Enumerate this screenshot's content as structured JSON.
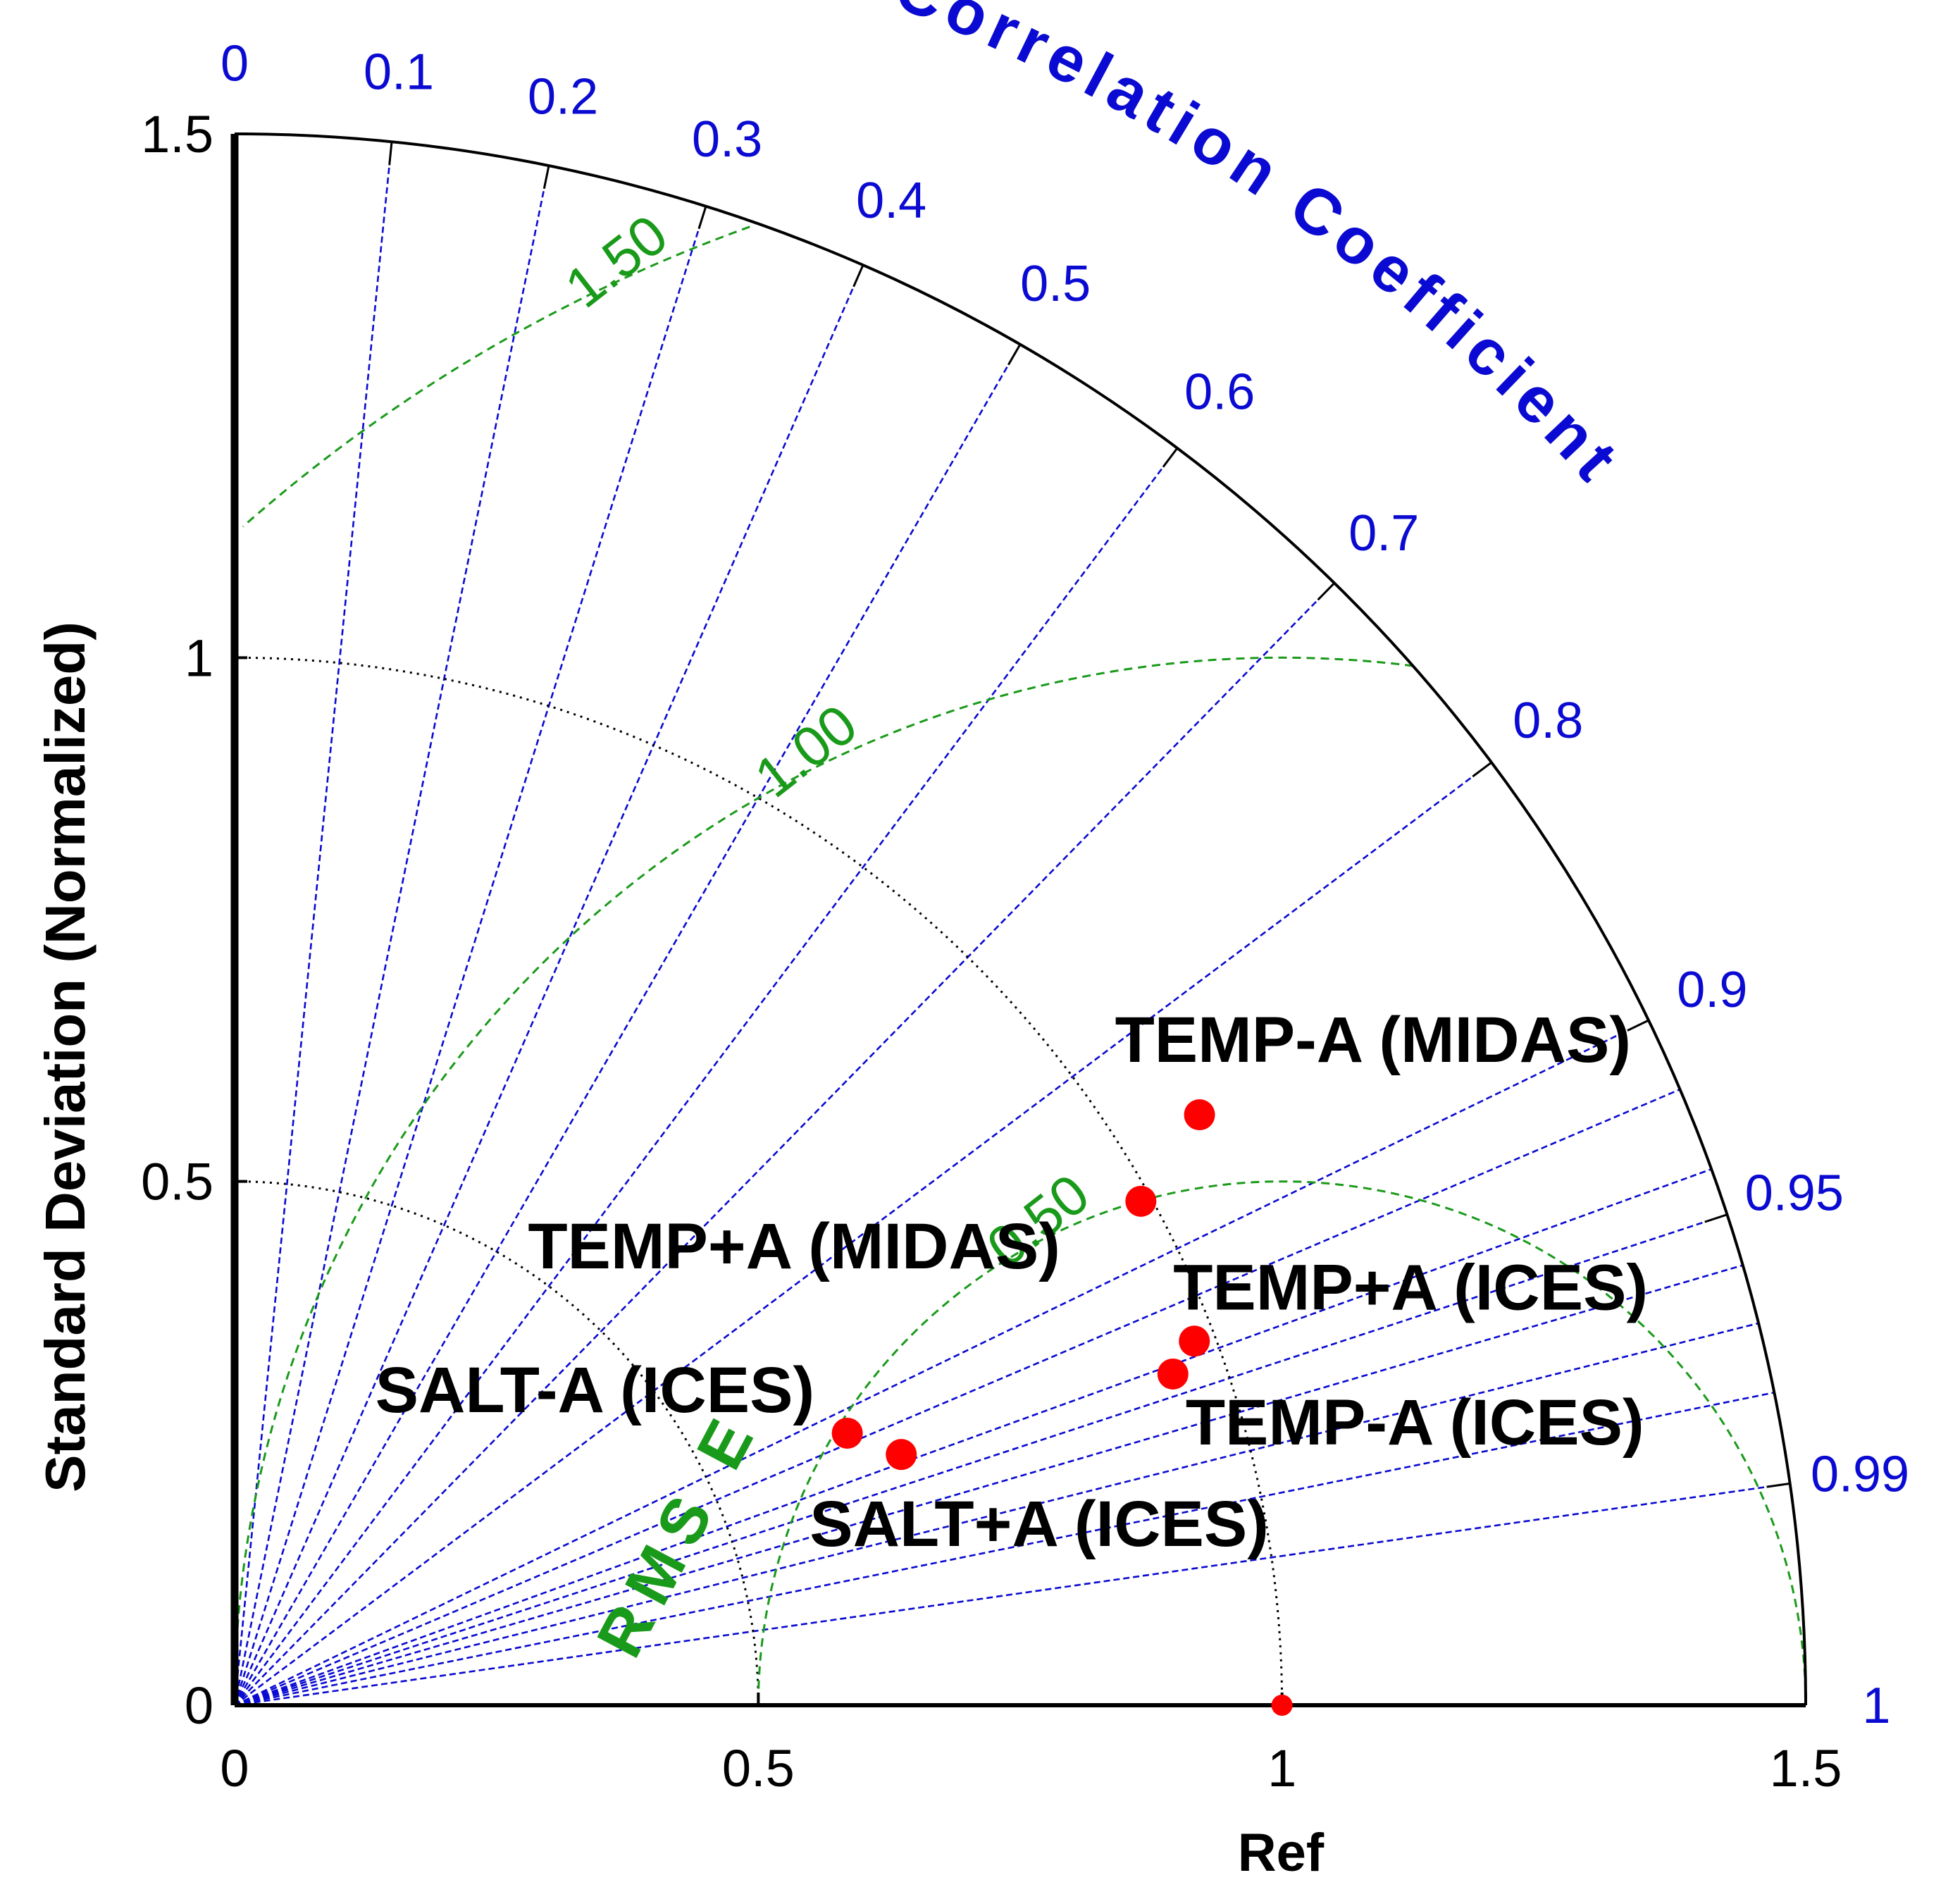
{
  "chart_data": {
    "type": "taylor",
    "title": "",
    "ylabel": "Standard Deviation (Normalized)",
    "corr_title": "Correlation Coefficient",
    "rms_title": "RMS E",
    "ref_label": "Ref",
    "std_range": [
      0,
      1.5
    ],
    "std_ticks": [
      0,
      0.5,
      1,
      1.5
    ],
    "std_tick_labels": [
      "0",
      "0.5",
      "1",
      "1.5"
    ],
    "corr_ticks": [
      0,
      0.1,
      0.2,
      0.3,
      0.4,
      0.5,
      0.6,
      0.7,
      0.8,
      0.9,
      0.95,
      0.99,
      1
    ],
    "corr_tick_labels": [
      "0",
      "0.1",
      "0.2",
      "0.3",
      "0.4",
      "0.5",
      "0.6",
      "0.7",
      "0.8",
      "0.9",
      "0.95",
      "0.99",
      "1"
    ],
    "rms_contours": [
      0.5,
      1.0,
      1.5
    ],
    "rms_labels": [
      "0.50",
      "1.00",
      "1.50"
    ],
    "reference": {
      "std": 1.0,
      "corr": 1.0
    },
    "points": [
      {
        "name": "TEMP-A (MIDAS)",
        "std": 1.08,
        "corr": 0.853
      },
      {
        "name": "TEMP+A (MIDAS)",
        "std": 0.99,
        "corr": 0.874
      },
      {
        "name": "TEMP+A (ICES)",
        "std": 0.98,
        "corr": 0.935
      },
      {
        "name": "TEMP-A (ICES)",
        "std": 0.95,
        "corr": 0.943
      },
      {
        "name": "SALT-A (ICES)",
        "std": 0.64,
        "corr": 0.914
      },
      {
        "name": "SALT+A (ICES)",
        "std": 0.68,
        "corr": 0.936
      }
    ],
    "colors": {
      "axis": "#000000",
      "corr": "#0a0ad2",
      "rms": "#1a9a1a",
      "point": "#ff0000",
      "std_arc": "#000000"
    }
  }
}
